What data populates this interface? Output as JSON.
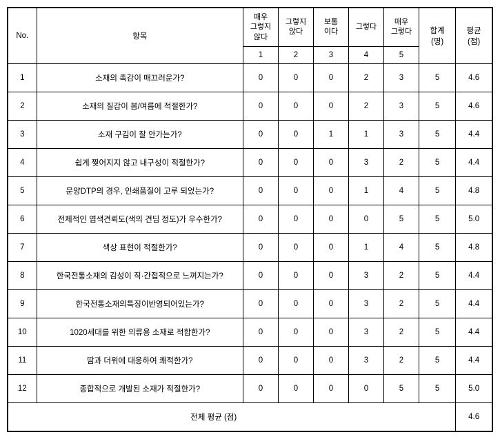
{
  "header": {
    "no_label": "No.",
    "item_label": "항목",
    "scale_labels": [
      "매우\n그렇지\n않다",
      "그렇지\n않다",
      "보통\n이다",
      "그렇다",
      "매우\n그렇다"
    ],
    "scale_numbers": [
      "1",
      "2",
      "3",
      "4",
      "5"
    ],
    "total_label": "합계",
    "total_unit": "(명)",
    "avg_label": "평균",
    "avg_unit": "(점)"
  },
  "rows": [
    {
      "no": "1",
      "item": "소재의 촉감이 매끄러운가?",
      "v": [
        "0",
        "0",
        "0",
        "2",
        "3"
      ],
      "total": "5",
      "avg": "4.6"
    },
    {
      "no": "2",
      "item": "소재의 질감이 봄/여름에 적절한가?",
      "v": [
        "0",
        "0",
        "0",
        "2",
        "3"
      ],
      "total": "5",
      "avg": "4.6"
    },
    {
      "no": "3",
      "item": "소재 구김이 잘 안가는가?",
      "v": [
        "0",
        "0",
        "1",
        "1",
        "3"
      ],
      "total": "5",
      "avg": "4.4"
    },
    {
      "no": "4",
      "item": "쉽게 찢어지지 않고 내구성이 적절한가?",
      "v": [
        "0",
        "0",
        "0",
        "3",
        "2"
      ],
      "total": "5",
      "avg": "4.4"
    },
    {
      "no": "5",
      "item": "문양DTP의 경우, 인쇄품질이 고루  되었는가?",
      "v": [
        "0",
        "0",
        "0",
        "1",
        "4"
      ],
      "total": "5",
      "avg": "4.8"
    },
    {
      "no": "6",
      "item": "전체적인 염색견뢰도(색의 견딤 정도)가  우수한가?",
      "v": [
        "0",
        "0",
        "0",
        "0",
        "5"
      ],
      "total": "5",
      "avg": "5.0"
    },
    {
      "no": "7",
      "item": "색상 표현이 적절한가?",
      "v": [
        "0",
        "0",
        "0",
        "1",
        "4"
      ],
      "total": "5",
      "avg": "4.8"
    },
    {
      "no": "8",
      "item": "한국전통소재의 감성이 직·간접적으로  느껴지는가?",
      "v": [
        "0",
        "0",
        "0",
        "3",
        "2"
      ],
      "total": "5",
      "avg": "4.4"
    },
    {
      "no": "9",
      "item": "한국전통소재의특징이반영되어있는가?",
      "v": [
        "0",
        "0",
        "0",
        "3",
        "2"
      ],
      "total": "5",
      "avg": "4.4"
    },
    {
      "no": "10",
      "item": "1020세대를 위한 의류용 소재로  적합한가?",
      "v": [
        "0",
        "0",
        "0",
        "3",
        "2"
      ],
      "total": "5",
      "avg": "4.4"
    },
    {
      "no": "11",
      "item": "땀과 더위에 대응하여 쾌적한가?",
      "v": [
        "0",
        "0",
        "0",
        "3",
        "2"
      ],
      "total": "5",
      "avg": "4.4"
    },
    {
      "no": "12",
      "item": "종합적으로 개발된 소재가 적절한가?",
      "v": [
        "0",
        "0",
        "0",
        "0",
        "5"
      ],
      "total": "5",
      "avg": "5.0"
    }
  ],
  "footer": {
    "label": "전체 평균 (점)",
    "avg": "4.6"
  },
  "style": {
    "border_color": "#000000",
    "background_color": "#ffffff",
    "font_size_header": 11,
    "font_size_body": 11.5
  }
}
